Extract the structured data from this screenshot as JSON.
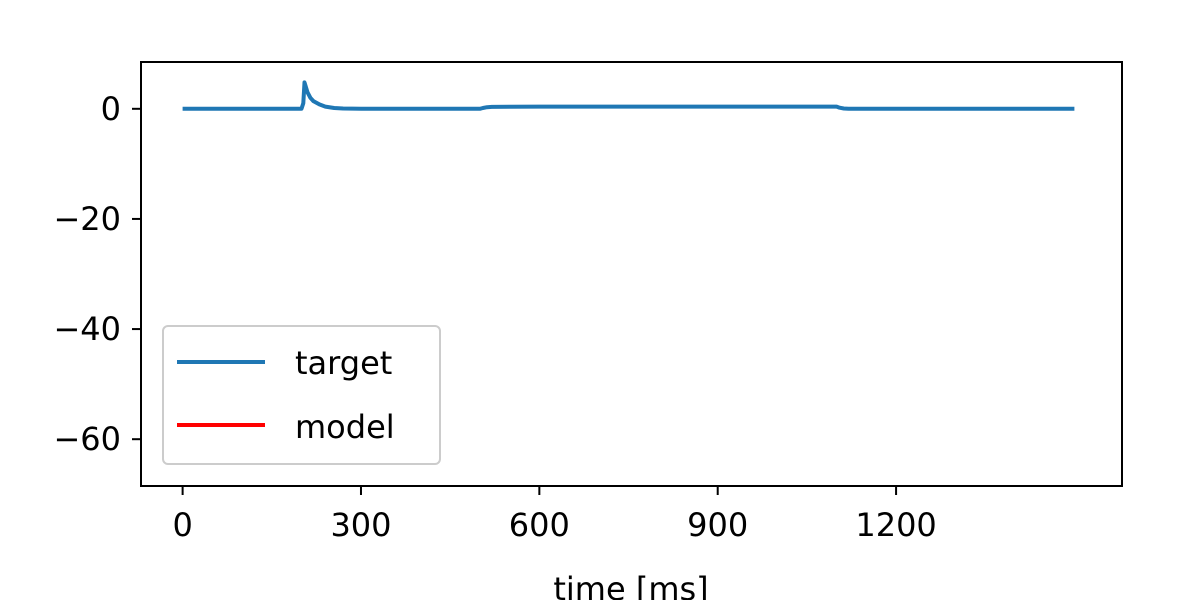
{
  "chart_data": {
    "type": "line",
    "title": "",
    "xlabel": "time [ms]",
    "ylabel": "",
    "xlim": [
      -70,
      1580
    ],
    "ylim": [
      -68.5,
      8.5
    ],
    "xticks": [
      0,
      300,
      600,
      900,
      1200
    ],
    "xtick_labels": [
      "0",
      "300",
      "600",
      "900",
      "1200"
    ],
    "yticks": [
      0,
      -20,
      -40,
      -60
    ],
    "ytick_labels": [
      "0",
      "−20",
      "−40",
      "−60"
    ],
    "grid": false,
    "legend_position": "lower-left",
    "series": [
      {
        "name": "target",
        "color": "#1f77b4",
        "x": [
          0,
          200,
          203,
          205,
          210,
          215,
          220,
          230,
          240,
          255,
          270,
          300,
          500,
          505,
          512,
          520,
          600,
          900,
          1100,
          1105,
          1112,
          1120,
          1200,
          1500
        ],
        "y": [
          0,
          0,
          1.0,
          4.8,
          3.0,
          2.0,
          1.4,
          0.8,
          0.4,
          0.15,
          0.05,
          0,
          0,
          0.15,
          0.3,
          0.35,
          0.4,
          0.4,
          0.4,
          0.2,
          0.05,
          0,
          0,
          0
        ]
      },
      {
        "name": "model",
        "color": "#ff0000",
        "x": [],
        "y": []
      }
    ]
  }
}
